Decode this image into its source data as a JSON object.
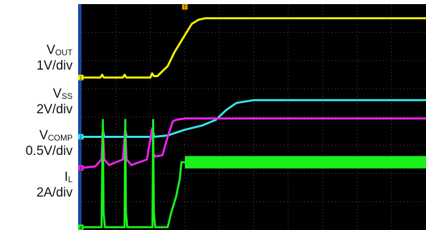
{
  "channels": [
    {
      "key": "vout",
      "label_main": "V",
      "label_sub": "OUT",
      "scale": "1V/div",
      "color": "#f2f200",
      "marker": "1"
    },
    {
      "key": "vss",
      "label_main": "V",
      "label_sub": "SS",
      "scale": "2V/div",
      "color": "#33e8f0",
      "marker": "2"
    },
    {
      "key": "vcomp",
      "label_main": "V",
      "label_sub": "COMP",
      "scale": "0.5V/div",
      "color": "#ee22ee",
      "marker": "3"
    },
    {
      "key": "il",
      "label_main": "I",
      "label_sub": "L",
      "scale": "2A/div",
      "color": "#1cf01c",
      "marker": "4"
    }
  ],
  "trigger_marker": "T",
  "chart_data": {
    "type": "line",
    "title": "",
    "x_range": [
      0,
      10
    ],
    "grid": true,
    "series": [
      {
        "name": "VOUT",
        "x": [
          0,
          0.55,
          0.6,
          0.65,
          1.2,
          1.25,
          1.3,
          2.0,
          2.05,
          2.1,
          2.2,
          2.5,
          2.7,
          3.0,
          3.2,
          3.4,
          3.6,
          10
        ],
        "y": [
          5.4,
          5.4,
          5.5,
          5.4,
          5.4,
          5.5,
          5.4,
          5.4,
          5.55,
          5.45,
          5.45,
          5.8,
          6.3,
          6.9,
          7.3,
          7.45,
          7.5,
          7.5
        ]
      },
      {
        "name": "VSS",
        "x": [
          0,
          0.6,
          0.62,
          0.66,
          1.25,
          1.27,
          1.31,
          2.05,
          2.07,
          2.11,
          2.5,
          3.0,
          3.5,
          3.9,
          4.2,
          4.5,
          5.0,
          10
        ],
        "y": [
          3.3,
          3.3,
          3.55,
          3.3,
          3.3,
          3.55,
          3.3,
          3.3,
          3.55,
          3.3,
          3.35,
          3.55,
          3.7,
          3.9,
          4.25,
          4.5,
          4.6,
          4.6
        ]
      },
      {
        "name": "VCOMP",
        "x": [
          0,
          0.4,
          0.58,
          0.62,
          0.66,
          0.8,
          1.2,
          1.27,
          1.31,
          1.45,
          1.9,
          2.05,
          2.09,
          2.15,
          2.35,
          2.5,
          2.65,
          2.75,
          3.0,
          10
        ],
        "y": [
          2.2,
          2.25,
          2.5,
          3.6,
          2.5,
          2.3,
          2.5,
          3.6,
          2.5,
          2.3,
          2.5,
          3.6,
          2.7,
          2.6,
          2.65,
          3.3,
          3.85,
          3.9,
          3.95,
          3.95
        ]
      },
      {
        "name": "IL",
        "x": [
          0,
          0.58,
          0.62,
          0.64,
          0.68,
          1.25,
          1.27,
          1.29,
          1.33,
          2.06,
          2.08,
          2.1,
          2.14,
          2.5,
          2.6,
          2.75,
          2.85,
          2.9,
          3.0,
          10
        ],
        "y": [
          0.1,
          0.1,
          3.9,
          0.6,
          0.1,
          0.1,
          3.9,
          0.6,
          0.1,
          0.1,
          3.9,
          0.6,
          0.1,
          0.1,
          0.6,
          1.2,
          1.8,
          2.4,
          2.4,
          2.4
        ]
      }
    ]
  }
}
